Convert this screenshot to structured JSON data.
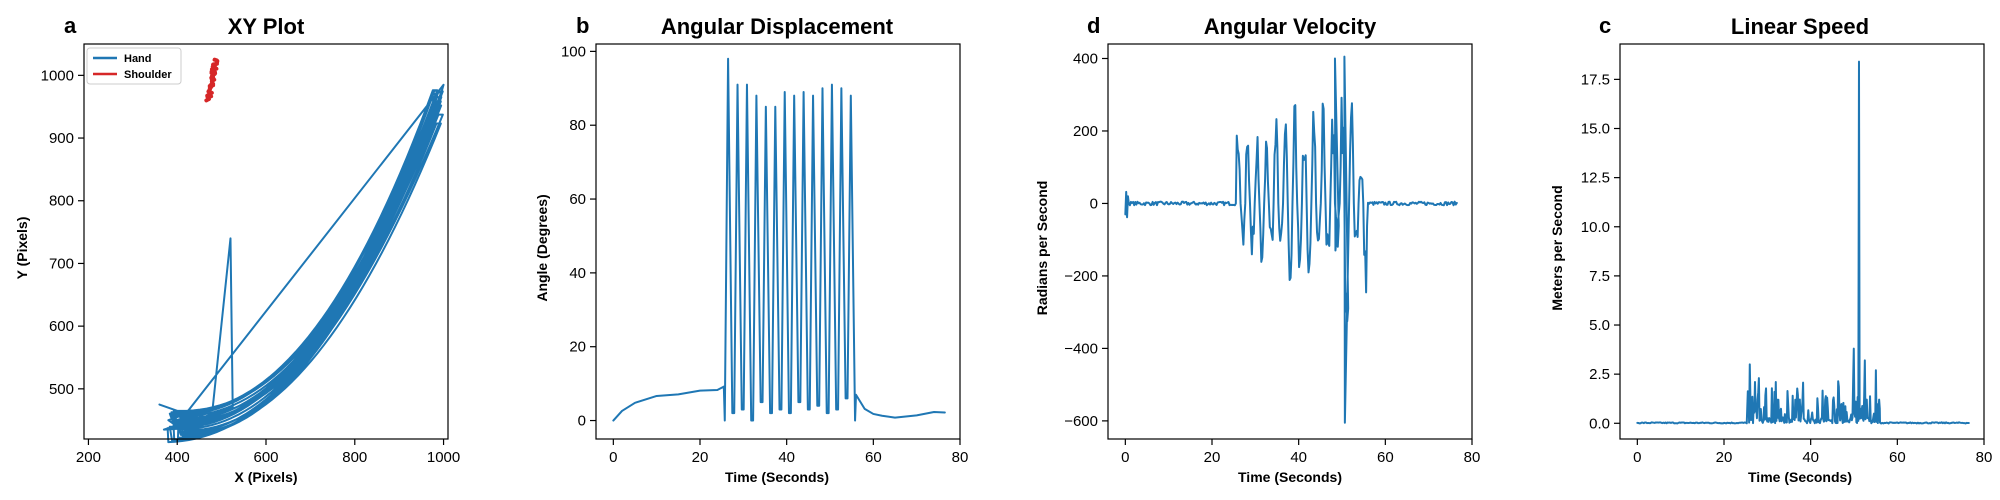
{
  "colors": {
    "hand": "#1f77b4",
    "shoulder": "#d62728",
    "line": "#1f77b4"
  },
  "chart_data": [
    {
      "id": "xy",
      "panel": "a",
      "type": "line",
      "title": "XY Plot",
      "xlabel": "X (Pixels)",
      "ylabel": "Y (Pixels)",
      "xlim": [
        190,
        1010
      ],
      "ylim": [
        420,
        1050
      ],
      "xticks": [
        200,
        400,
        600,
        800,
        1000
      ],
      "yticks": [
        500,
        600,
        700,
        800,
        900,
        1000
      ],
      "legend": {
        "position": "top-left",
        "entries": [
          "Hand",
          "Shoulder"
        ]
      },
      "series": [
        {
          "name": "Hand",
          "color": "#1f77b4",
          "kind": "trajectory",
          "arc": {
            "x_min": 400,
            "x_max": 990,
            "y_base": 450,
            "y_top": 960,
            "power": 2.2,
            "cycles": 14,
            "spread": 30
          },
          "spike": [
            [
              480,
              470
            ],
            [
              520,
              740
            ],
            [
              525,
              470
            ]
          ],
          "start_points": [
            [
              360,
              475
            ],
            [
              420,
              460
            ],
            [
              380,
              450
            ],
            [
              410,
              435
            ]
          ]
        },
        {
          "name": "Shoulder",
          "color": "#d62728",
          "kind": "cluster",
          "center": [
            478,
            1000
          ],
          "x_range": [
            465,
            492
          ],
          "y_range": [
            960,
            1025
          ]
        }
      ]
    },
    {
      "id": "angdisp",
      "panel": "b",
      "type": "line",
      "title": "Angular Displacement",
      "xlabel": "Time (Seconds)",
      "ylabel": "Angle (Degrees)",
      "xlim": [
        -4,
        80
      ],
      "ylim": [
        -5,
        102
      ],
      "xticks": [
        0,
        20,
        40,
        60,
        80
      ],
      "yticks": [
        0,
        20,
        40,
        60,
        80,
        100
      ],
      "series": [
        {
          "name": "",
          "color": "#1f77b4",
          "kind": "angle",
          "baseline": [
            [
              0,
              0
            ],
            [
              2,
              3
            ],
            [
              5,
              5
            ],
            [
              10,
              7
            ],
            [
              15,
              7.5
            ],
            [
              20,
              8
            ],
            [
              24,
              8.5
            ],
            [
              25.5,
              9
            ]
          ],
          "oscillation": {
            "start": 25.5,
            "end": 56,
            "peaks": [
              98,
              91,
              91,
              88,
              85,
              85,
              89,
              88,
              89,
              88,
              90,
              91,
              90,
              88
            ],
            "troughs": [
              0,
              2,
              3,
              0,
              5,
              2,
              3,
              2,
              5,
              3,
              4,
              2,
              3,
              6
            ]
          },
          "tail": [
            [
              56,
              7
            ],
            [
              58,
              3
            ],
            [
              60,
              2
            ],
            [
              62,
              1
            ],
            [
              65,
              1
            ],
            [
              70,
              1.5
            ],
            [
              74,
              2
            ],
            [
              76.5,
              2.5
            ]
          ]
        }
      ]
    },
    {
      "id": "angvel",
      "panel": "d",
      "type": "line",
      "title": "Angular Velocity",
      "xlabel": "Time (Seconds)",
      "ylabel": "Radians per Second",
      "xlim": [
        -4,
        80
      ],
      "ylim": [
        -650,
        440
      ],
      "xticks": [
        0,
        20,
        40,
        60,
        80
      ],
      "yticks": [
        -600,
        -400,
        -200,
        0,
        200,
        400
      ],
      "series": [
        {
          "name": "",
          "color": "#1f77b4",
          "kind": "velocity",
          "quiet_noise": 5,
          "initial_spikes": [
            [
              0.2,
              32
            ],
            [
              0.4,
              -38
            ],
            [
              0.6,
              20
            ]
          ],
          "active": {
            "start": 25.5,
            "end": 56,
            "amplitudes_pos": [
              330,
              270,
              260,
              290,
              270,
              280,
              290,
              260,
              290,
              310,
              400,
              405,
              340,
              150
            ],
            "amplitudes_neg": [
              -120,
              -150,
              -220,
              -180,
              -150,
              -240,
              -200,
              -230,
              -170,
              -210,
              -130,
              -605,
              -210,
              -275
            ]
          }
        }
      ]
    },
    {
      "id": "linspeed",
      "panel": "c",
      "type": "line",
      "title": "Linear Speed",
      "xlabel": "Time (Seconds)",
      "ylabel": "Meters per Second",
      "xlim": [
        -4,
        80
      ],
      "ylim": [
        -0.8,
        19.3
      ],
      "xticks": [
        0,
        20,
        40,
        60,
        80
      ],
      "yticks": [
        0.0,
        2.5,
        5.0,
        7.5,
        10.0,
        12.5,
        15.0,
        17.5
      ],
      "ytick_labels": [
        "0.0",
        "2.5",
        "5.0",
        "7.5",
        "10.0",
        "12.5",
        "15.0",
        "17.5"
      ],
      "series": [
        {
          "name": "",
          "color": "#1f77b4",
          "kind": "speed",
          "quiet_level": 0.02,
          "active": {
            "start": 25.5,
            "end": 56,
            "max_burst": 2.4,
            "spikes": [
              [
                26,
                3.0
              ],
              [
                28,
                2.3
              ],
              [
                32,
                2.1
              ],
              [
                50,
                3.8
              ],
              [
                51.2,
                18.4
              ],
              [
                52.5,
                3.2
              ],
              [
                55,
                2.7
              ]
            ]
          }
        }
      ]
    }
  ]
}
